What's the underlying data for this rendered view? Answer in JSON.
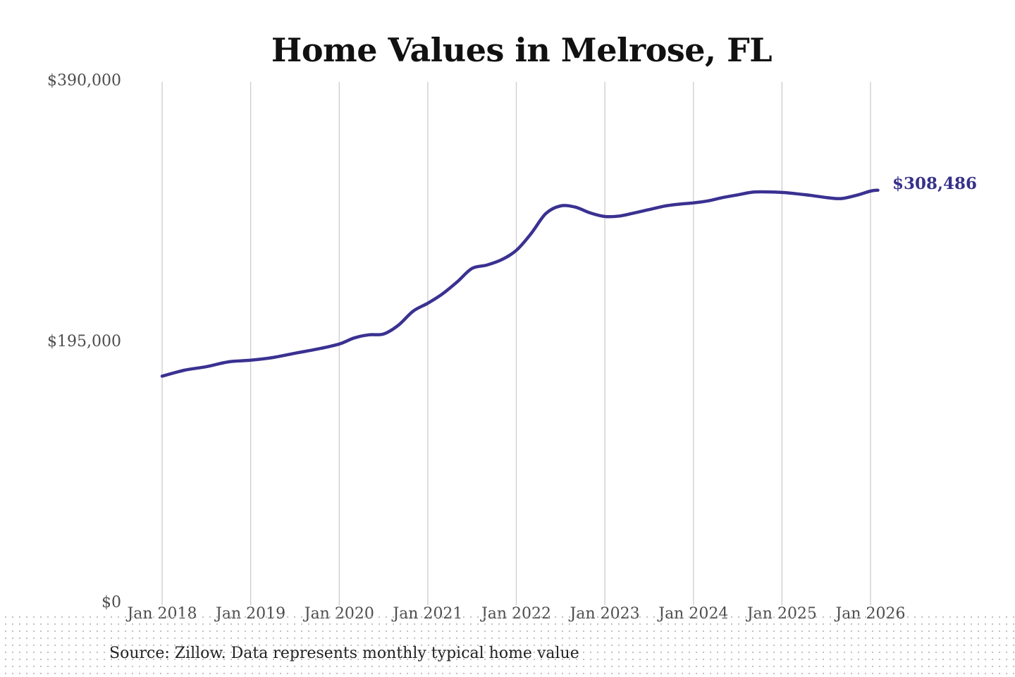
{
  "title": "Home Values in Melrose, FL",
  "source_note": "Source: Zillow. Data represents monthly typical home value",
  "colors": {
    "line": "#3a3191",
    "end_label": "#363189",
    "grid": "#cccccc",
    "title": "#111111",
    "tick_text": "#4d4d4d",
    "source_text": "#222222",
    "dot_texture": "#c2c2c2",
    "background": "#ffffff"
  },
  "chart_data": {
    "type": "line",
    "title": "Home Values in Melrose, FL",
    "xlabel": "",
    "ylabel": "",
    "ylim": [
      0,
      390000
    ],
    "grid": "vertical-only",
    "legend_position": "none",
    "y_ticks": [
      {
        "label": "$390,000",
        "value": 390000
      },
      {
        "label": "$195,000",
        "value": 195000
      },
      {
        "label": "$0",
        "value": 0
      }
    ],
    "x_ticks": [
      {
        "label": "Jan 2018",
        "m": 0
      },
      {
        "label": "Jan 2019",
        "m": 12
      },
      {
        "label": "Jan 2020",
        "m": 24
      },
      {
        "label": "Jan 2021",
        "m": 36
      },
      {
        "label": "Jan 2022",
        "m": 48
      },
      {
        "label": "Jan 2023",
        "m": 60
      },
      {
        "label": "Jan 2024",
        "m": 72
      },
      {
        "label": "Jan 2025",
        "m": 84
      },
      {
        "label": "Jan 2026",
        "m": 96
      }
    ],
    "series": [
      {
        "name": "Monthly typical home value",
        "points_format": "[months_since_Jan_2018, usd_value]",
        "points": [
          [
            0,
            169500
          ],
          [
            3,
            173900
          ],
          [
            6,
            176600
          ],
          [
            9,
            180200
          ],
          [
            12,
            181400
          ],
          [
            15,
            183400
          ],
          [
            18,
            186600
          ],
          [
            21,
            189700
          ],
          [
            24,
            193500
          ],
          [
            26,
            198000
          ],
          [
            28,
            200400
          ],
          [
            30,
            201000
          ],
          [
            32,
            207500
          ],
          [
            34,
            218000
          ],
          [
            36,
            224000
          ],
          [
            38,
            231000
          ],
          [
            40,
            240000
          ],
          [
            42,
            250000
          ],
          [
            44,
            252500
          ],
          [
            46,
            256500
          ],
          [
            48,
            263500
          ],
          [
            50,
            276000
          ],
          [
            52,
            291000
          ],
          [
            54,
            296700
          ],
          [
            56,
            295800
          ],
          [
            58,
            291500
          ],
          [
            60,
            288800
          ],
          [
            62,
            289200
          ],
          [
            64,
            291500
          ],
          [
            66,
            294000
          ],
          [
            68,
            296500
          ],
          [
            70,
            298000
          ],
          [
            72,
            299000
          ],
          [
            74,
            300500
          ],
          [
            76,
            303000
          ],
          [
            78,
            305000
          ],
          [
            80,
            307000
          ],
          [
            82,
            307200
          ],
          [
            84,
            306800
          ],
          [
            86,
            305800
          ],
          [
            88,
            304500
          ],
          [
            90,
            303000
          ],
          [
            92,
            302200
          ],
          [
            94,
            304500
          ],
          [
            96,
            307800
          ],
          [
            97,
            308486
          ]
        ]
      }
    ],
    "end_value": 308486,
    "end_label": "$308,486"
  }
}
